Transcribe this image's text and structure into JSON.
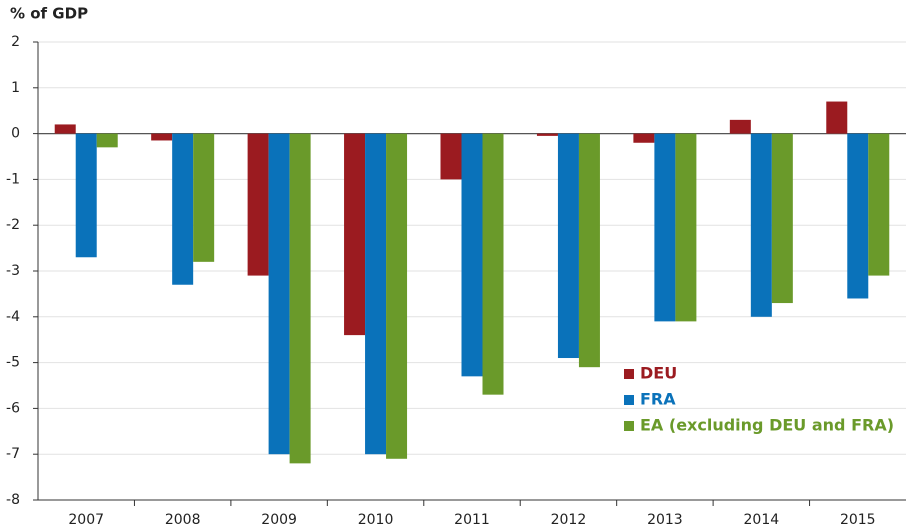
{
  "chart_data": {
    "type": "bar",
    "title": "% of GDP",
    "categories": [
      "2007",
      "2008",
      "2009",
      "2010",
      "2011",
      "2012",
      "2013",
      "2014",
      "2015"
    ],
    "series": [
      {
        "name": "DEU",
        "color": "#9b1b20",
        "values": [
          0.2,
          -0.15,
          -3.1,
          -4.4,
          -1.0,
          -0.05,
          -0.2,
          0.3,
          0.7
        ]
      },
      {
        "name": "FRA",
        "color": "#0a72ba",
        "values": [
          -2.7,
          -3.3,
          -7.0,
          -7.0,
          -5.3,
          -4.9,
          -4.1,
          -4.0,
          -3.6
        ]
      },
      {
        "name": "EA (excluding DEU and FRA)",
        "color": "#6a9a2a",
        "values": [
          -0.3,
          -2.8,
          -7.2,
          -7.1,
          -5.7,
          -5.1,
          -4.1,
          -3.7,
          -3.1
        ]
      }
    ],
    "ylim": [
      -8,
      2
    ],
    "yticks": [
      -8,
      -7,
      -6,
      -5,
      -4,
      -3,
      -2,
      -1,
      0,
      1,
      2
    ],
    "grid": true,
    "legend": "lower right"
  }
}
